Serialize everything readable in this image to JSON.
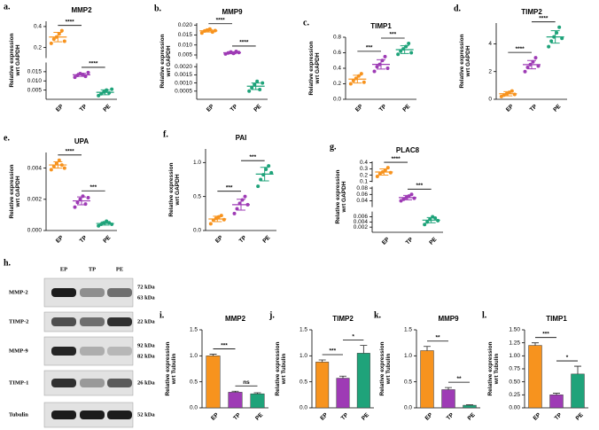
{
  "chart_data": [
    {
      "type": "dot",
      "label": "a.",
      "title": "MMP2",
      "ylabel": [
        "Relative expression",
        "wrt GAPDH"
      ],
      "categories": [
        "EP",
        "TP",
        "PE"
      ],
      "colors": [
        "#f7931e",
        "#9e3bb5",
        "#1fa37a"
      ],
      "segments": [
        {
          "ylim": [
            0,
            0.02
          ],
          "yticks": [
            0.005,
            {
              "value": 0.01,
              "label": "0.010"
            },
            0.015
          ]
        },
        {
          "ylim": [
            0.1,
            0.45
          ],
          "yticks": [
            0.2,
            0.4
          ]
        }
      ],
      "points": [
        [
          0.24,
          0.28,
          0.3,
          0.33,
          0.36,
          0.26
        ],
        [
          0.012,
          0.013,
          0.014,
          0.0135,
          0.0125,
          0.0145
        ],
        [
          0.002,
          0.003,
          0.004,
          0.005,
          0.0035,
          0.0055
        ]
      ],
      "means": [
        0.3,
        0.0133,
        0.0038
      ],
      "sd": [
        0.045,
        0.0008,
        0.0013
      ],
      "annotations": [
        {
          "text": "****",
          "between": [
            "EP",
            "TP"
          ]
        },
        {
          "text": "****",
          "between": [
            "TP",
            "PE"
          ]
        }
      ]
    },
    {
      "type": "dot",
      "label": "b.",
      "title": "MMP9",
      "ylabel": [
        "Relative expression",
        "wrt GAPDH"
      ],
      "categories": [
        "EP",
        "TP",
        "PE"
      ],
      "colors": [
        "#f7931e",
        "#9e3bb5",
        "#1fa37a"
      ],
      "segments": [
        {
          "ylim": [
            0,
            0.0022
          ],
          "yticks": [
            0.0005,
            {
              "value": 0.001,
              "label": "0.0010"
            },
            0.0015,
            {
              "value": 0.002,
              "label": "0.0020"
            }
          ]
        },
        {
          "ylim": [
            0.003,
            0.021
          ],
          "yticks": [
            0.005,
            {
              "value": 0.01,
              "label": "0.010"
            },
            0.015,
            {
              "value": 0.02,
              "label": "0.020"
            }
          ]
        }
      ],
      "points": [
        [
          0.016,
          0.017,
          0.0175,
          0.018,
          0.0165,
          0.0172
        ],
        [
          0.0055,
          0.006,
          0.0065,
          0.0058,
          0.0068,
          0.0062
        ],
        [
          0.0005,
          0.0007,
          0.0009,
          0.0011,
          0.0006,
          0.001
        ]
      ],
      "means": [
        0.0171,
        0.0061,
        0.0008
      ],
      "sd": [
        0.0006,
        0.0005,
        0.0002
      ],
      "annotations": [
        {
          "text": "****",
          "between": [
            "EP",
            "TP"
          ]
        },
        {
          "text": "****",
          "between": [
            "TP",
            "PE"
          ]
        }
      ]
    },
    {
      "type": "dot",
      "label": "c.",
      "title": "TIMP1",
      "ylabel": [
        "Relative expression",
        "wrt GAPDH"
      ],
      "categories": [
        "EP",
        "TP",
        "PE"
      ],
      "colors": [
        "#f7931e",
        "#9e3bb5",
        "#1fa37a"
      ],
      "ylim": [
        0,
        0.8
      ],
      "yticks": [
        {
          "value": 0,
          "label": "0.0"
        },
        0.2,
        0.4,
        0.6,
        0.8
      ],
      "points": [
        [
          0.2,
          0.24,
          0.27,
          0.3,
          0.33,
          0.22
        ],
        [
          0.36,
          0.42,
          0.45,
          0.5,
          0.55,
          0.4
        ],
        [
          0.58,
          0.62,
          0.65,
          0.68,
          0.72,
          0.6
        ]
      ],
      "means": [
        0.26,
        0.45,
        0.64
      ],
      "sd": [
        0.05,
        0.06,
        0.05
      ],
      "annotations": [
        {
          "text": "***",
          "between": [
            "EP",
            "TP"
          ]
        },
        {
          "text": "***",
          "between": [
            "TP",
            "PE"
          ]
        }
      ]
    },
    {
      "type": "dot",
      "label": "d.",
      "title": "TIMP2",
      "ylabel": [
        "Relative expression",
        "wrt GAPDH"
      ],
      "categories": [
        "EP",
        "TP",
        "PE"
      ],
      "colors": [
        "#f7931e",
        "#9e3bb5",
        "#1fa37a"
      ],
      "ylim": [
        0,
        5.5
      ],
      "yticks": [
        0,
        2,
        4
      ],
      "points": [
        [
          0.2,
          0.3,
          0.4,
          0.5,
          0.6,
          0.35
        ],
        [
          2.0,
          2.3,
          2.5,
          2.7,
          3.0,
          2.4
        ],
        [
          3.8,
          4.2,
          4.5,
          4.8,
          5.2,
          4.4
        ]
      ],
      "means": [
        0.4,
        2.5,
        4.5
      ],
      "sd": [
        0.15,
        0.3,
        0.45
      ],
      "annotations": [
        {
          "text": "****",
          "between": [
            "EP",
            "TP"
          ]
        },
        {
          "text": "****",
          "between": [
            "TP",
            "PE"
          ]
        }
      ]
    },
    {
      "type": "dot",
      "label": "e.",
      "title": "UPA",
      "ylabel": [
        "Relative expression",
        "wrt GAPDH"
      ],
      "categories": [
        "EP",
        "TP",
        "PE"
      ],
      "colors": [
        "#f7931e",
        "#9e3bb5",
        "#1fa37a"
      ],
      "ylim": [
        0,
        0.005
      ],
      "yticks": [
        {
          "value": 0,
          "label": "0.000"
        },
        0.002,
        0.004
      ],
      "points": [
        [
          0.0039,
          0.0041,
          0.0043,
          0.0045,
          0.0042,
          0.004
        ],
        [
          0.0015,
          0.0018,
          0.002,
          0.0022,
          0.0017,
          0.0021
        ],
        [
          0.0003,
          0.0004,
          0.0005,
          0.0006,
          0.0005,
          0.0004
        ]
      ],
      "means": [
        0.0042,
        0.0019,
        0.00045
      ],
      "sd": [
        0.0002,
        0.00025,
        0.0001
      ],
      "annotations": [
        {
          "text": "****",
          "between": [
            "EP",
            "TP"
          ]
        },
        {
          "text": "***",
          "between": [
            "TP",
            "PE"
          ]
        }
      ]
    },
    {
      "type": "dot",
      "label": "f.",
      "title": "PAI",
      "ylabel": [
        "Relative expression",
        "wrt GAPDH"
      ],
      "categories": [
        "EP",
        "TP",
        "PE"
      ],
      "colors": [
        "#f7931e",
        "#9e3bb5",
        "#1fa37a"
      ],
      "ylim": [
        0,
        1.2
      ],
      "yticks": [
        {
          "value": 0,
          "label": "0.0"
        },
        0.5,
        {
          "value": 1,
          "label": "1.0"
        }
      ],
      "points": [
        [
          0.1,
          0.15,
          0.18,
          0.2,
          0.22,
          0.16
        ],
        [
          0.25,
          0.32,
          0.4,
          0.45,
          0.5,
          0.38
        ],
        [
          0.65,
          0.75,
          0.82,
          0.9,
          0.95,
          0.85
        ]
      ],
      "means": [
        0.17,
        0.38,
        0.83
      ],
      "sd": [
        0.04,
        0.08,
        0.1
      ],
      "annotations": [
        {
          "text": "***",
          "between": [
            "EP",
            "TP"
          ]
        },
        {
          "text": "***",
          "between": [
            "TP",
            "PE"
          ]
        }
      ]
    },
    {
      "type": "dot",
      "label": "g.",
      "title": "PLAC8",
      "ylabel": [
        "Relative expression",
        "wrt GAPDH"
      ],
      "categories": [
        "EP",
        "TP",
        "PE"
      ],
      "colors": [
        "#f7931e",
        "#9e3bb5",
        "#1fa37a"
      ],
      "segments": [
        {
          "ylim": [
            0,
            0.008
          ],
          "yticks": [
            0.002,
            0.004,
            0.006
          ]
        },
        {
          "ylim": [
            0.02,
            0.085
          ],
          "yticks": [
            0.04,
            0.06,
            0.08
          ]
        },
        {
          "ylim": [
            0.09,
            0.42
          ],
          "yticks": [
            0.1,
            0.2,
            0.3,
            0.4
          ]
        }
      ],
      "points": [
        [
          0.18,
          0.22,
          0.25,
          0.28,
          0.32,
          0.24
        ],
        [
          0.04,
          0.045,
          0.05,
          0.055,
          0.06,
          0.048
        ],
        [
          0.003,
          0.004,
          0.005,
          0.006,
          0.0055,
          0.0045
        ]
      ],
      "means": [
        0.25,
        0.05,
        0.0047
      ],
      "sd": [
        0.05,
        0.007,
        0.001
      ],
      "annotations": [
        {
          "text": "****",
          "between": [
            "EP",
            "TP"
          ]
        },
        {
          "text": "***",
          "between": [
            "TP",
            "PE"
          ]
        }
      ]
    },
    {
      "type": "bar",
      "label": "i.",
      "title": "MMP2",
      "ylabel": [
        "Relative expression",
        "wrt Tubulin"
      ],
      "categories": [
        "EP",
        "TP",
        "PE"
      ],
      "colors": [
        "#f7931e",
        "#9e3bb5",
        "#1fa37a"
      ],
      "ylim": [
        0,
        1.5
      ],
      "yticks": [
        {
          "value": 0,
          "label": "0.0"
        },
        0.5,
        {
          "value": 1,
          "label": "1.0"
        },
        1.5
      ],
      "values": [
        1.0,
        0.3,
        0.27
      ],
      "errors": [
        0.03,
        0.02,
        0.02
      ],
      "annotations": [
        {
          "text": "***",
          "between": [
            "EP",
            "TP"
          ]
        },
        {
          "text": "ns",
          "between": [
            "TP",
            "PE"
          ]
        }
      ]
    },
    {
      "type": "bar",
      "label": "j.",
      "title": "TIMP2",
      "ylabel": [
        "Relative expression",
        "wrt Tubulin"
      ],
      "categories": [
        "EP",
        "TP",
        "PE"
      ],
      "colors": [
        "#f7931e",
        "#9e3bb5",
        "#1fa37a"
      ],
      "ylim": [
        0,
        1.5
      ],
      "yticks": [
        {
          "value": 0,
          "label": "0.0"
        },
        0.5,
        {
          "value": 1,
          "label": "1.0"
        },
        1.5
      ],
      "values": [
        0.88,
        0.57,
        1.05
      ],
      "errors": [
        0.04,
        0.04,
        0.15
      ],
      "annotations": [
        {
          "text": "***",
          "between": [
            "EP",
            "TP"
          ]
        },
        {
          "text": "*",
          "between": [
            "TP",
            "PE"
          ]
        }
      ]
    },
    {
      "type": "bar",
      "label": "k.",
      "title": "MMP9",
      "ylabel": [
        "Relative expression",
        "wrt Tubulin"
      ],
      "categories": [
        "EP",
        "TP",
        "PE"
      ],
      "colors": [
        "#f7931e",
        "#9e3bb5",
        "#1fa37a"
      ],
      "ylim": [
        0,
        1.5
      ],
      "yticks": [
        {
          "value": 0,
          "label": "0.0"
        },
        0.5,
        {
          "value": 1,
          "label": "1.0"
        },
        1.5
      ],
      "values": [
        1.1,
        0.35,
        0.05
      ],
      "errors": [
        0.08,
        0.04,
        0.01
      ],
      "annotations": [
        {
          "text": "**",
          "between": [
            "EP",
            "TP"
          ]
        },
        {
          "text": "**",
          "between": [
            "TP",
            "PE"
          ]
        }
      ]
    },
    {
      "type": "bar",
      "label": "l.",
      "title": "TIMP1",
      "ylabel": [
        "Relative expression",
        "wrt Tubulin"
      ],
      "categories": [
        "EP",
        "TP",
        "PE"
      ],
      "colors": [
        "#f7931e",
        "#9e3bb5",
        "#1fa37a"
      ],
      "ylim": [
        0,
        1.5
      ],
      "yticks": [
        {
          "value": 0,
          "label": "0.00"
        },
        0.25,
        {
          "value": 0.5,
          "label": "0.50"
        },
        0.75,
        {
          "value": 1,
          "label": "1.00"
        },
        1.25,
        {
          "value": 1.5,
          "label": "1.50"
        }
      ],
      "values": [
        1.2,
        0.25,
        0.65
      ],
      "errors": [
        0.05,
        0.03,
        0.15
      ],
      "annotations": [
        {
          "text": "***",
          "between": [
            "EP",
            "TP"
          ]
        },
        {
          "text": "*",
          "between": [
            "TP",
            "PE"
          ]
        }
      ]
    }
  ],
  "blot": {
    "label": "h.",
    "lanes": [
      "EP",
      "TP",
      "PE"
    ],
    "rows": [
      {
        "name": "MMP-2",
        "sizes": [
          "72 kDa",
          "63 kDa"
        ]
      },
      {
        "name": "TIMP-2",
        "sizes": [
          "22 kDa"
        ]
      },
      {
        "name": "MMP-9",
        "sizes": [
          "92 kDa",
          "82 kDa"
        ]
      },
      {
        "name": "TIMP-1",
        "sizes": [
          "26 kDa"
        ]
      },
      {
        "name": "Tubulin",
        "sizes": [
          "52 kDa"
        ]
      }
    ]
  }
}
